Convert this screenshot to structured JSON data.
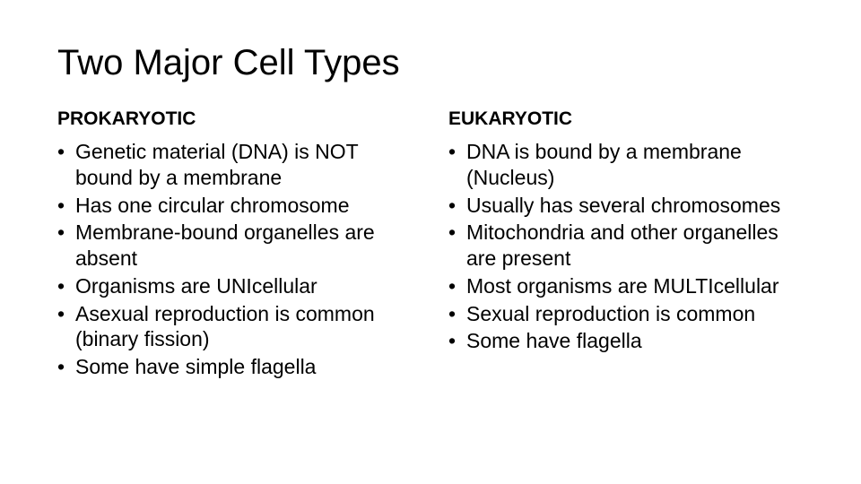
{
  "title": "Two Major Cell Types",
  "left": {
    "heading": "PROKARYOTIC",
    "items": [
      "Genetic material (DNA) is NOT bound by a membrane",
      "Has one circular chromosome",
      "Membrane-bound organelles are absent",
      "Organisms are UNIcellular",
      "Asexual reproduction is common (binary fission)",
      "Some have simple flagella"
    ]
  },
  "right": {
    "heading": "EUKARYOTIC",
    "items": [
      "DNA is bound by a membrane (Nucleus)",
      "Usually has several chromosomes",
      "Mitochondria and other organelles are present",
      "Most organisms are MULTIcellular",
      "Sexual reproduction is common",
      "Some have flagella"
    ]
  },
  "style": {
    "title_fontsize": 40,
    "heading_fontsize": 21,
    "body_fontsize": 23,
    "text_color": "#000000",
    "background_color": "#ffffff"
  }
}
